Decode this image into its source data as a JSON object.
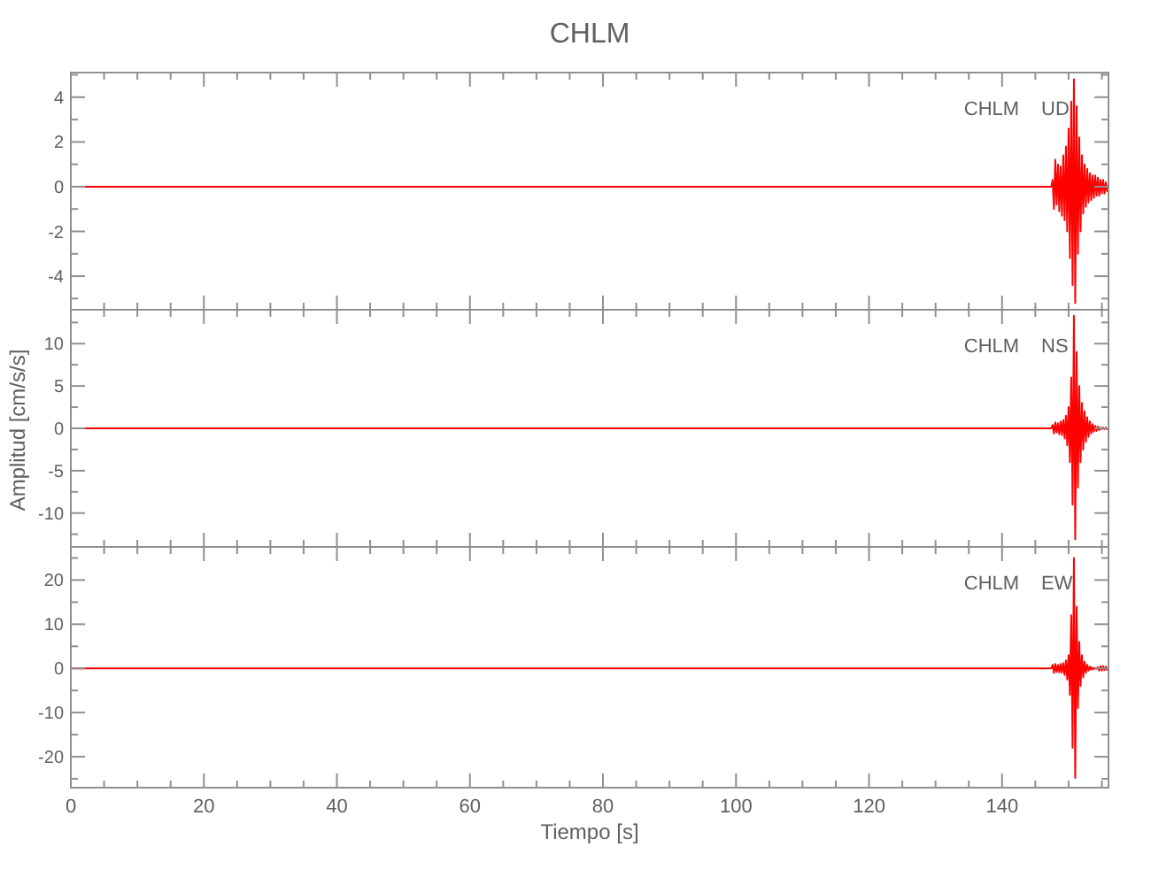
{
  "chart_data": [
    {
      "type": "line",
      "title": "CHLM",
      "annotations": [
        "CHLM",
        "UD"
      ],
      "color": "#ff0000",
      "xlim": [
        0,
        156
      ],
      "xticks": [
        0,
        {
          "value": 5,
          "label": null
        },
        {
          "value": 10,
          "label": null
        },
        {
          "value": 15,
          "label": null
        },
        20,
        {
          "value": 25,
          "label": null
        },
        {
          "value": 30,
          "label": null
        },
        {
          "value": 35,
          "label": null
        },
        40,
        {
          "value": 45,
          "label": null
        },
        {
          "value": 50,
          "label": null
        },
        {
          "value": 55,
          "label": null
        },
        60,
        {
          "value": 65,
          "label": null
        },
        {
          "value": 70,
          "label": null
        },
        {
          "value": 75,
          "label": null
        },
        80,
        {
          "value": 85,
          "label": null
        },
        {
          "value": 90,
          "label": null
        },
        {
          "value": 95,
          "label": null
        },
        100,
        {
          "value": 105,
          "label": null
        },
        {
          "value": 110,
          "label": null
        },
        {
          "value": 115,
          "label": null
        },
        120,
        {
          "value": 125,
          "label": null
        },
        {
          "value": 130,
          "label": null
        },
        {
          "value": 135,
          "label": null
        },
        140,
        {
          "value": 145,
          "label": null
        },
        {
          "value": 150,
          "label": null
        },
        {
          "value": 155,
          "label": null
        }
      ],
      "ylim": [
        -5.5,
        5.1
      ],
      "yticks": [
        {
          "value": -5,
          "label": null
        },
        -4,
        {
          "value": -3,
          "label": null
        },
        -2,
        {
          "value": -1,
          "label": null
        },
        0,
        {
          "value": 1,
          "label": null
        },
        2,
        {
          "value": 3,
          "label": null
        },
        4,
        {
          "value": 5,
          "label": null
        }
      ],
      "tick_labels": "y",
      "x": [
        0,
        40,
        80,
        120,
        147.4,
        147.6,
        147.8,
        148.0,
        148.2,
        148.4,
        148.6,
        148.8,
        149.0,
        149.2,
        149.4,
        149.6,
        149.8,
        150.0,
        150.2,
        150.4,
        150.6,
        150.8,
        151.0,
        151.2,
        151.4,
        151.6,
        151.8,
        152.0,
        152.2,
        152.4,
        152.6,
        152.8,
        153.0,
        153.2,
        153.4,
        153.6,
        153.8,
        154.0,
        154.2,
        154.4,
        154.6,
        154.8,
        155.0,
        155.2,
        155.4,
        155.6,
        155.8,
        156.0
      ],
      "values": [
        0,
        0,
        0,
        0,
        0,
        0.3,
        -1.0,
        1.2,
        -0.8,
        1.0,
        -1.1,
        0.9,
        -1.3,
        1.4,
        -1.5,
        1.8,
        -2.0,
        2.6,
        -3.2,
        3.8,
        -4.4,
        4.8,
        -5.2,
        3.6,
        -3.0,
        2.2,
        -2.0,
        1.4,
        -1.2,
        1.0,
        -0.9,
        0.8,
        -0.7,
        0.6,
        -0.6,
        0.5,
        -0.5,
        0.5,
        -0.4,
        0.4,
        -0.4,
        0.3,
        -0.3,
        0.3,
        -0.3,
        0.2,
        -0.2,
        0.1
      ]
    },
    {
      "type": "line",
      "ylabel": "Amplitud [cm/s/s]",
      "annotations": [
        "CHLM",
        "NS"
      ],
      "color": "#ff0000",
      "xlim": [
        0,
        156
      ],
      "xticks": [
        0,
        {
          "value": 5,
          "label": null
        },
        {
          "value": 10,
          "label": null
        },
        {
          "value": 15,
          "label": null
        },
        20,
        {
          "value": 25,
          "label": null
        },
        {
          "value": 30,
          "label": null
        },
        {
          "value": 35,
          "label": null
        },
        40,
        {
          "value": 45,
          "label": null
        },
        {
          "value": 50,
          "label": null
        },
        {
          "value": 55,
          "label": null
        },
        60,
        {
          "value": 65,
          "label": null
        },
        {
          "value": 70,
          "label": null
        },
        {
          "value": 75,
          "label": null
        },
        80,
        {
          "value": 85,
          "label": null
        },
        {
          "value": 90,
          "label": null
        },
        {
          "value": 95,
          "label": null
        },
        100,
        {
          "value": 105,
          "label": null
        },
        {
          "value": 110,
          "label": null
        },
        {
          "value": 115,
          "label": null
        },
        120,
        {
          "value": 125,
          "label": null
        },
        {
          "value": 130,
          "label": null
        },
        {
          "value": 135,
          "label": null
        },
        140,
        {
          "value": 145,
          "label": null
        },
        {
          "value": 150,
          "label": null
        },
        {
          "value": 155,
          "label": null
        }
      ],
      "ylim": [
        -14,
        14
      ],
      "yticks": [
        {
          "value": -12.5,
          "label": null
        },
        -10,
        {
          "value": -7.5,
          "label": null
        },
        -5,
        {
          "value": -2.5,
          "label": null
        },
        0,
        {
          "value": 2.5,
          "label": null
        },
        5,
        {
          "value": 7.5,
          "label": null
        },
        10,
        {
          "value": 12.5,
          "label": null
        }
      ],
      "tick_labels": "y",
      "x": [
        0,
        40,
        80,
        120,
        147.4,
        147.6,
        147.8,
        148.0,
        148.2,
        148.4,
        148.6,
        148.8,
        149.0,
        149.2,
        149.4,
        149.6,
        149.8,
        150.0,
        150.2,
        150.4,
        150.6,
        150.8,
        151.0,
        151.2,
        151.4,
        151.6,
        151.8,
        152.0,
        152.2,
        152.4,
        152.6,
        152.8,
        153.0,
        153.2,
        153.4,
        153.6,
        153.8,
        154.0,
        154.2,
        154.4,
        154.6,
        154.8,
        155.0,
        155.2,
        155.4,
        155.6,
        155.8,
        156.0
      ],
      "values": [
        0,
        0,
        0,
        0,
        0,
        0.4,
        -0.6,
        0.7,
        -0.5,
        0.6,
        -0.7,
        0.8,
        -0.8,
        1.0,
        -1.2,
        1.5,
        -2.0,
        2.5,
        -4.0,
        6.0,
        -9.0,
        13.3,
        -13.1,
        9.0,
        -7.0,
        5.0,
        -4.0,
        3.0,
        -2.5,
        2.0,
        -1.6,
        1.3,
        -1.0,
        0.8,
        -0.6,
        0.5,
        -0.4,
        0.3,
        -0.3,
        0.2,
        -0.2,
        0.1,
        -0.1,
        0.1,
        -0.1,
        0.1,
        -0.1,
        0
      ]
    },
    {
      "type": "line",
      "xlabel": "Tiempo [s]",
      "annotations": [
        "CHLM",
        "EW"
      ],
      "color": "#ff0000",
      "xlim": [
        0,
        156
      ],
      "xticks": [
        0,
        {
          "value": 5,
          "label": null
        },
        {
          "value": 10,
          "label": null
        },
        {
          "value": 15,
          "label": null
        },
        20,
        {
          "value": 25,
          "label": null
        },
        {
          "value": 30,
          "label": null
        },
        {
          "value": 35,
          "label": null
        },
        40,
        {
          "value": 45,
          "label": null
        },
        {
          "value": 50,
          "label": null
        },
        {
          "value": 55,
          "label": null
        },
        60,
        {
          "value": 65,
          "label": null
        },
        {
          "value": 70,
          "label": null
        },
        {
          "value": 75,
          "label": null
        },
        80,
        {
          "value": 85,
          "label": null
        },
        {
          "value": 90,
          "label": null
        },
        {
          "value": 95,
          "label": null
        },
        100,
        {
          "value": 105,
          "label": null
        },
        {
          "value": 110,
          "label": null
        },
        {
          "value": 115,
          "label": null
        },
        120,
        {
          "value": 125,
          "label": null
        },
        {
          "value": 130,
          "label": null
        },
        {
          "value": 135,
          "label": null
        },
        140,
        {
          "value": 145,
          "label": null
        },
        {
          "value": 150,
          "label": null
        },
        {
          "value": 155,
          "label": null
        }
      ],
      "ylim": [
        -27,
        27.5
      ],
      "yticks": [
        {
          "value": -25,
          "label": null
        },
        -20,
        {
          "value": -15,
          "label": null
        },
        -10,
        {
          "value": -5,
          "label": null
        },
        0,
        {
          "value": 5,
          "label": null
        },
        10,
        {
          "value": 15,
          "label": null
        },
        20,
        {
          "value": 25,
          "label": null
        }
      ],
      "x": [
        0,
        40,
        80,
        120,
        147.4,
        147.6,
        147.8,
        148.0,
        148.2,
        148.4,
        148.6,
        148.8,
        149.0,
        149.2,
        149.4,
        149.6,
        149.8,
        150.0,
        150.2,
        150.4,
        150.6,
        150.8,
        151.0,
        151.2,
        151.4,
        151.6,
        151.8,
        152.0,
        152.2,
        152.4,
        152.6,
        152.8,
        153.0,
        153.2,
        153.4,
        153.6,
        153.8,
        154.0,
        154.2,
        154.4,
        154.6,
        154.8,
        155.0,
        155.2,
        155.4,
        155.6,
        155.8,
        156.0
      ],
      "values": [
        0,
        0,
        0,
        0,
        0,
        0.8,
        -1.0,
        1.0,
        -0.8,
        0.8,
        -0.9,
        1.0,
        -1.0,
        1.2,
        -1.5,
        1.8,
        -2.5,
        3.0,
        -6.0,
        12.0,
        -18.0,
        25.0,
        -24.8,
        14.0,
        -9.0,
        6.0,
        -4.0,
        3.0,
        -2.0,
        1.5,
        -1.0,
        0.8,
        -0.5,
        0.4,
        -0.3,
        0.2,
        -0.2,
        0.1,
        -0.1,
        0.3,
        -0.5,
        0.5,
        -0.5,
        0.5,
        -0.4,
        0.4,
        -0.3,
        0.3
      ]
    }
  ]
}
